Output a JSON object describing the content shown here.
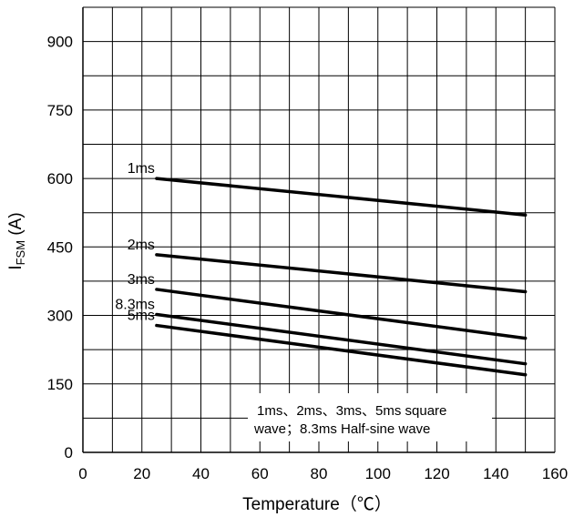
{
  "chart_data": {
    "type": "line",
    "title": "",
    "xlabel": "Temperature（℃）",
    "ylabel_main": "I",
    "ylabel_sub": "FSM",
    "ylabel_unit": " (A)",
    "xlim": [
      0,
      160
    ],
    "ylim": [
      0,
      975
    ],
    "x_ticks": [
      "0",
      "20",
      "40",
      "60",
      "80",
      "100",
      "120",
      "140",
      "160"
    ],
    "y_ticks": [
      "0",
      "150",
      "300",
      "450",
      "600",
      "750",
      "900"
    ],
    "grid": true,
    "series": [
      {
        "name": "1ms",
        "x": [
          25,
          150
        ],
        "y": [
          600,
          520
        ]
      },
      {
        "name": "2ms",
        "x": [
          25,
          150
        ],
        "y": [
          433,
          352
        ]
      },
      {
        "name": "3ms",
        "x": [
          25,
          150
        ],
        "y": [
          357,
          250
        ]
      },
      {
        "name": "8.3ms",
        "x": [
          25,
          150
        ],
        "y": [
          302,
          194
        ]
      },
      {
        "name": "5ms",
        "x": [
          25,
          150
        ],
        "y": [
          278,
          170
        ]
      }
    ],
    "annotation": {
      "line1": "1ms、2ms、3ms、5ms square",
      "line2": "wave；8.3ms Half-sine wave"
    }
  }
}
